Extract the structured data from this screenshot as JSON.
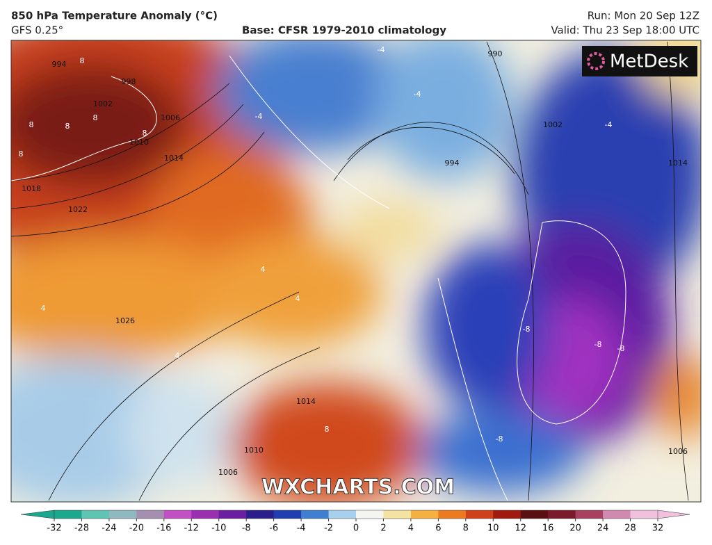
{
  "header": {
    "title": "850 hPa Temperature Anomaly (°C)",
    "model": "GFS 0.25°",
    "base": "Base: CFSR 1979-2010 climatology",
    "run": "Run: Mon 20 Sep 12Z",
    "valid": "Valid: Thu 23 Sep 18:00 UTC"
  },
  "logo": "MetDesk",
  "watermark": "WXCHARTS.COM",
  "isobar_labels": [
    "994",
    "998",
    "1002",
    "1006",
    "1010",
    "1014",
    "1018",
    "1022",
    "1026",
    "1014",
    "1010",
    "1006",
    "994",
    "990",
    "1002",
    "1014",
    "1006"
  ],
  "anomaly_labels": [
    "8",
    "8",
    "8",
    "8",
    "8",
    "8",
    "8",
    "-4",
    "-4",
    "-4",
    "-4",
    "4",
    "4",
    "4",
    "4",
    "-8",
    "-8",
    "-8",
    "-8"
  ],
  "colorbar": {
    "ticks": [
      -32,
      -28,
      -24,
      -20,
      -16,
      -12,
      -10,
      -8,
      -6,
      -4,
      -2,
      0,
      2,
      4,
      6,
      8,
      10,
      12,
      16,
      20,
      24,
      28,
      32
    ],
    "colors": [
      "#1aa88e",
      "#5fc4b4",
      "#8fb8c0",
      "#a58fb0",
      "#c24fc4",
      "#9a2fb0",
      "#6a1fa0",
      "#2a1f8a",
      "#1f3fb0",
      "#3f7fd0",
      "#a8d0ec",
      "#f4f4f0",
      "#f4e2a0",
      "#f4b040",
      "#ec7a20",
      "#d0401a",
      "#a01a10",
      "#5a1010",
      "#7a1a2a",
      "#a84060",
      "#d08ab0",
      "#f0c0dc"
    ]
  }
}
